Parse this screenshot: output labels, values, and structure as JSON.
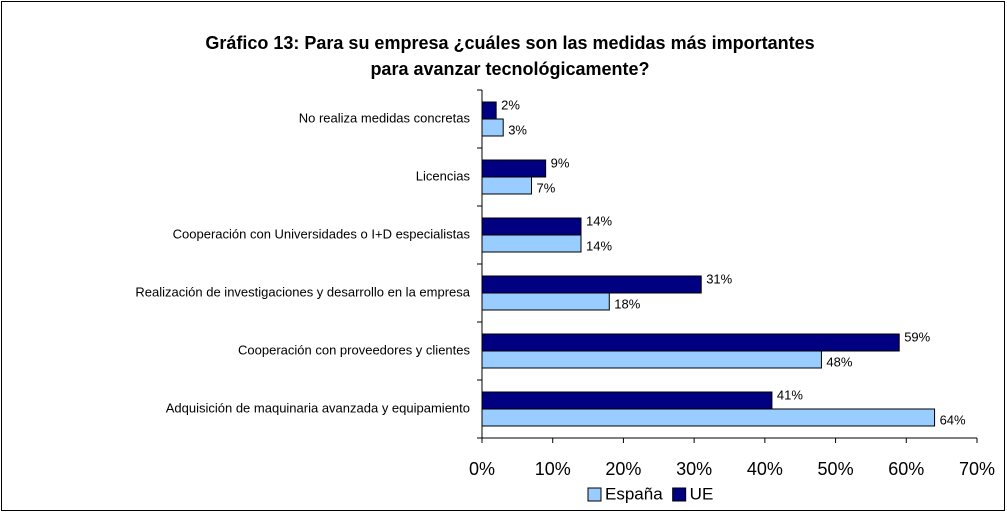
{
  "chart_data": {
    "type": "hbar",
    "title": [
      "Gráfico 13: Para su empresa ¿cuáles son las medidas más importantes",
      "para avanzar tecnológicamente?"
    ],
    "categories": [
      "No realiza medidas concretas",
      "Licencias",
      "Cooperación con Universidades o I+D especialistas",
      "Realización de investigaciones y desarrollo en la empresa",
      "Cooperación con proveedores y clientes",
      "Adquisición de maquinaria avanzada y equipamiento"
    ],
    "series": [
      {
        "name": "UE",
        "color": "#000080",
        "values": [
          2,
          9,
          14,
          31,
          59,
          41
        ],
        "value_labels": [
          "2%",
          "9%",
          "14%",
          "31%",
          "59%",
          "41%"
        ]
      },
      {
        "name": "España",
        "color": "#99ccff",
        "values": [
          3,
          7,
          14,
          18,
          48,
          64
        ],
        "value_labels": [
          "3%",
          "7%",
          "14%",
          "18%",
          "48%",
          "64%"
        ]
      }
    ],
    "legend_order": [
      "España",
      "UE"
    ],
    "xlim": [
      0,
      70
    ],
    "xticks": [
      {
        "value": 0,
        "label": "0%"
      },
      {
        "value": 10,
        "label": "10%"
      },
      {
        "value": 20,
        "label": "20%"
      },
      {
        "value": 30,
        "label": "30%"
      },
      {
        "value": 40,
        "label": "40%"
      },
      {
        "value": 50,
        "label": "50%"
      },
      {
        "value": 60,
        "label": "60%"
      },
      {
        "value": 70,
        "label": "70%"
      }
    ],
    "grid": false
  }
}
